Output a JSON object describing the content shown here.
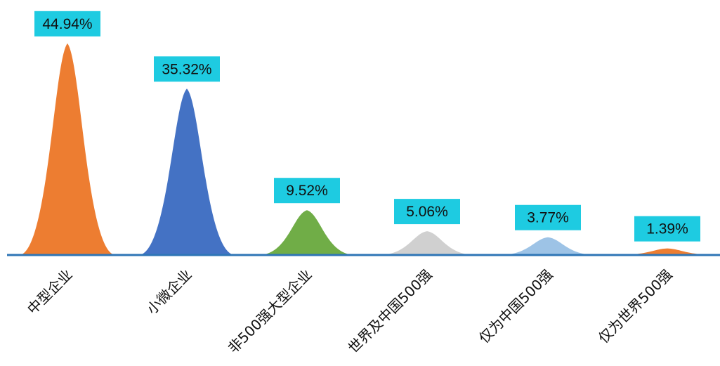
{
  "chart_data": {
    "type": "area",
    "title": "",
    "xlabel": "",
    "ylabel": "",
    "ylim": [
      0,
      47
    ],
    "grid": false,
    "legend": "none",
    "categories": [
      "中型企业",
      "小微企业",
      "非500强大型企业",
      "世界及中国500强",
      "仅为中国500强",
      "仅为世界500强"
    ],
    "values": [
      44.94,
      35.32,
      9.52,
      5.06,
      3.77,
      1.39
    ],
    "data_labels": [
      "44.94%",
      "35.32%",
      "9.52%",
      "5.06%",
      "3.77%",
      "1.39%"
    ],
    "colors": [
      "#ed7d31",
      "#4472c4",
      "#70ad47",
      "#d0d0d0",
      "#9dc3e6",
      "#ed7d31"
    ],
    "label_box_color": "#1ecbe1",
    "axis_color": "#2e75b6"
  }
}
